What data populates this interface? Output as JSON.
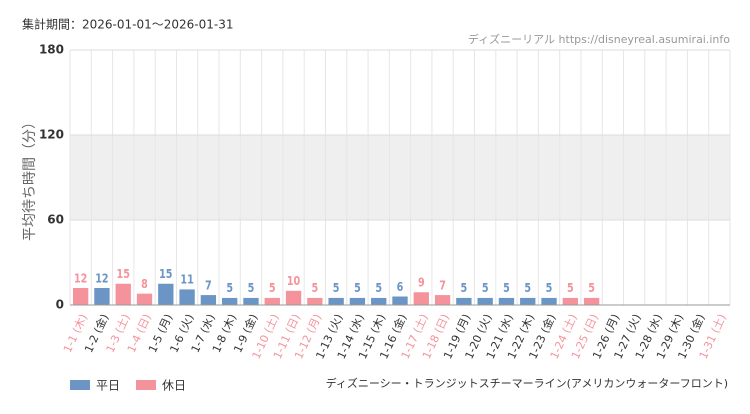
{
  "chart_data": {
    "type": "bar",
    "title": "集計期間：2026-01-01～2026-01-31",
    "source": "ディズニーリアル https://disneyreal.asumirai.info",
    "y_label": "平均待ち時間（分）",
    "subtitle": "ディズニーシー・トランジットスチーマーライン(アメリカンウォーターフロント)",
    "categories": [
      "1-1 (木)",
      "1-2 (金)",
      "1-3 (土)",
      "1-4 (日)",
      "1-5 (月)",
      "1-6 (火)",
      "1-7 (水)",
      "1-8 (木)",
      "1-9 (金)",
      "1-10 (土)",
      "1-11 (日)",
      "1-12 (月)",
      "1-13 (火)",
      "1-14 (水)",
      "1-15 (木)",
      "1-16 (金)",
      "1-17 (土)",
      "1-18 (日)",
      "1-19 (月)",
      "1-20 (火)",
      "1-21 (水)",
      "1-22 (木)",
      "1-23 (金)",
      "1-24 (土)",
      "1-25 (日)",
      "1-26 (月)",
      "1-27 (火)",
      "1-28 (水)",
      "1-29 (木)",
      "1-30 (金)",
      "1-31 (土)"
    ],
    "holiday": [
      true,
      false,
      true,
      true,
      false,
      false,
      false,
      false,
      false,
      true,
      true,
      true,
      false,
      false,
      false,
      false,
      true,
      true,
      false,
      false,
      false,
      false,
      false,
      true,
      true,
      false,
      false,
      false,
      false,
      false,
      true
    ],
    "series": [
      {
        "name": "平日",
        "color": "#6a95c4",
        "values": [
          null,
          12,
          null,
          null,
          15,
          11,
          7,
          5,
          5,
          null,
          null,
          null,
          5,
          5,
          5,
          6,
          null,
          null,
          5,
          5,
          5,
          5,
          5,
          null,
          null,
          null,
          null,
          null,
          null,
          null,
          null
        ]
      },
      {
        "name": "休日",
        "color": "#f4939b",
        "values": [
          12,
          null,
          15,
          8,
          null,
          null,
          null,
          null,
          null,
          5,
          10,
          5,
          null,
          null,
          null,
          null,
          9,
          7,
          null,
          null,
          null,
          null,
          null,
          5,
          5,
          null,
          null,
          null,
          null,
          null,
          null
        ]
      }
    ],
    "ylim": [
      0,
      180
    ],
    "yticks": [
      0,
      60,
      120,
      180
    ],
    "band": [
      60,
      120
    ],
    "grid": true
  }
}
